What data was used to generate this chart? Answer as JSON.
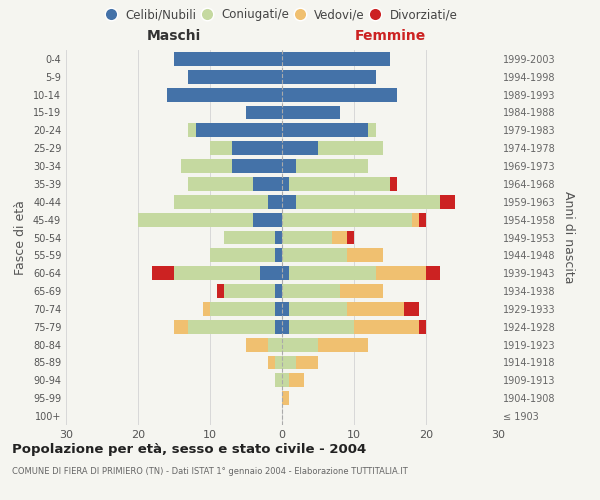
{
  "age_groups": [
    "100+",
    "95-99",
    "90-94",
    "85-89",
    "80-84",
    "75-79",
    "70-74",
    "65-69",
    "60-64",
    "55-59",
    "50-54",
    "45-49",
    "40-44",
    "35-39",
    "30-34",
    "25-29",
    "20-24",
    "15-19",
    "10-14",
    "5-9",
    "0-4"
  ],
  "birth_years": [
    "≤ 1903",
    "1904-1908",
    "1909-1913",
    "1914-1918",
    "1919-1923",
    "1924-1928",
    "1929-1933",
    "1934-1938",
    "1939-1943",
    "1944-1948",
    "1949-1953",
    "1954-1958",
    "1959-1963",
    "1964-1968",
    "1969-1973",
    "1974-1978",
    "1979-1983",
    "1984-1988",
    "1989-1993",
    "1994-1998",
    "1999-2003"
  ],
  "males": {
    "celibinubili": [
      0,
      0,
      0,
      0,
      0,
      1,
      1,
      1,
      3,
      1,
      1,
      4,
      2,
      4,
      7,
      7,
      12,
      5,
      16,
      13,
      15
    ],
    "coniugati": [
      0,
      0,
      1,
      1,
      2,
      12,
      9,
      7,
      12,
      9,
      7,
      16,
      13,
      9,
      7,
      3,
      1,
      0,
      0,
      0,
      0
    ],
    "vedovi": [
      0,
      0,
      0,
      1,
      3,
      2,
      1,
      0,
      0,
      0,
      0,
      0,
      0,
      0,
      0,
      0,
      0,
      0,
      0,
      0,
      0
    ],
    "divorziati": [
      0,
      0,
      0,
      0,
      0,
      0,
      0,
      1,
      3,
      0,
      0,
      0,
      0,
      0,
      0,
      0,
      0,
      0,
      0,
      0,
      0
    ]
  },
  "females": {
    "celibinubili": [
      0,
      0,
      0,
      0,
      0,
      1,
      1,
      0,
      1,
      0,
      0,
      0,
      2,
      1,
      2,
      5,
      12,
      8,
      16,
      13,
      15
    ],
    "coniugate": [
      0,
      0,
      1,
      2,
      5,
      9,
      8,
      8,
      12,
      9,
      7,
      18,
      20,
      14,
      10,
      9,
      1,
      0,
      0,
      0,
      0
    ],
    "vedove": [
      0,
      1,
      2,
      3,
      7,
      9,
      8,
      6,
      7,
      5,
      2,
      1,
      0,
      0,
      0,
      0,
      0,
      0,
      0,
      0,
      0
    ],
    "divorziate": [
      0,
      0,
      0,
      0,
      0,
      1,
      2,
      0,
      2,
      0,
      1,
      1,
      2,
      1,
      0,
      0,
      0,
      0,
      0,
      0,
      0
    ]
  },
  "colors": {
    "celibinubili": "#4472a8",
    "coniugati": "#c5d9a0",
    "vedovi": "#f0c070",
    "divorziati": "#cc2222"
  },
  "xlim": 30,
  "title": "Popolazione per età, sesso e stato civile - 2004",
  "subtitle": "COMUNE DI FIERA DI PRIMIERO (TN) - Dati ISTAT 1° gennaio 2004 - Elaborazione TUTTITALIA.IT",
  "ylabel_left": "Fasce di età",
  "ylabel_right": "Anni di nascita",
  "xlabel_males": "Maschi",
  "xlabel_females": "Femmine",
  "bg_color": "#f5f5f0",
  "grid_color": "#d8d8d8",
  "legend_labels": [
    "Celibi/Nubili",
    "Coniugati/e",
    "Vedovi/e",
    "Divorziati/e"
  ]
}
